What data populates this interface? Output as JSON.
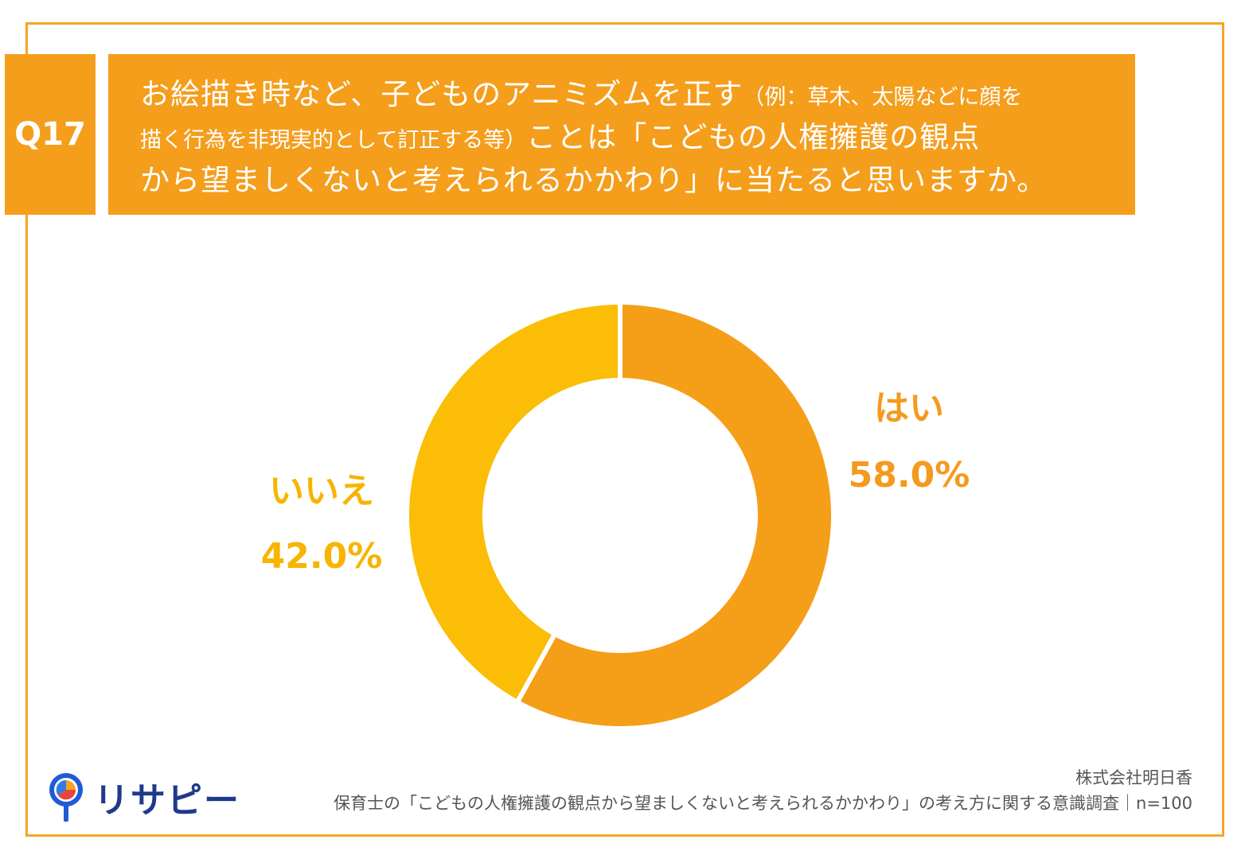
{
  "question": {
    "number": "Q17",
    "line1_main": "お絵描き時など、子どものアニミズムを正す",
    "line1_small": "（例：草木、太陽などに顔を",
    "line2_small": "描く行為を非現実的として訂正する等）",
    "line2_main": "ことは「こどもの人権擁護の観点",
    "line3": "から望ましくないと考えられるかかわり」に当たると思いますか。"
  },
  "colors": {
    "accent": "#f49e1c",
    "border": "#f5a623",
    "yes": "#f59e18",
    "no": "#fbbd05"
  },
  "chart_data": {
    "type": "pie",
    "style": "donut",
    "categories": [
      "はい",
      "いいえ"
    ],
    "values": [
      58.0,
      42.0
    ],
    "labels": [
      "58.0%",
      "42.0%"
    ]
  },
  "footer": {
    "logo_text": "リサピー",
    "company": "株式会社明日香",
    "survey": "保育士の「こどもの人権擁護の観点から望ましくないと考えられるかかわり」の考え方に関する意識調査｜n=100"
  }
}
